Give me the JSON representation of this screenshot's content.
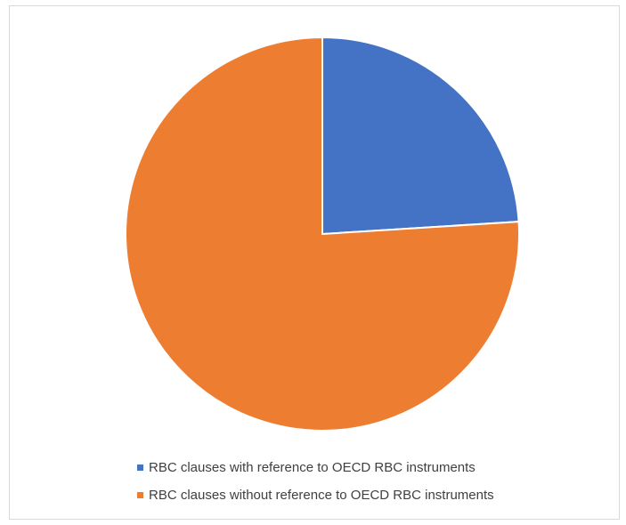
{
  "chart_data": {
    "type": "pie",
    "title": "",
    "series": [
      {
        "name": "",
        "slices": [
          {
            "label": "RBC clauses with reference to OECD RBC instruments",
            "value": 24,
            "color": "#4472C4"
          },
          {
            "label": "RBC clauses without reference to OECD RBC instruments",
            "value": 76,
            "color": "#ED7D31"
          }
        ]
      }
    ],
    "legend_position": "bottom",
    "start_angle_deg": 0,
    "direction": "clockwise"
  }
}
